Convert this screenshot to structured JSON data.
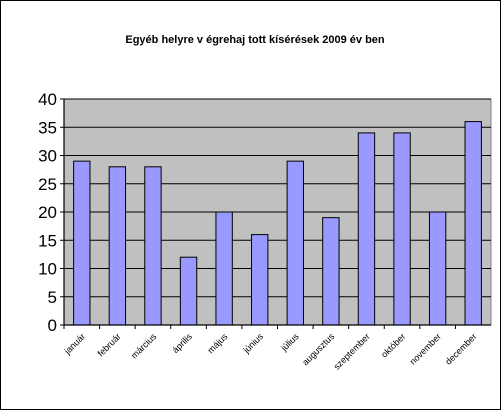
{
  "chart_data": {
    "type": "bar",
    "title": "Egyéb helyre v égrehaj tott kísérések 2009 év ben",
    "xlabel": "",
    "ylabel": "",
    "ylim": [
      0,
      40
    ],
    "yticks": [
      "0",
      "5",
      "10",
      "15",
      "20",
      "25",
      "30",
      "35",
      "40"
    ],
    "grid": true,
    "legend": "none",
    "categories": [
      "január",
      "február",
      "március",
      "április",
      "május",
      "június",
      "július",
      "augusztus",
      "szeptember",
      "október",
      "november",
      "december"
    ],
    "values": [
      29,
      28,
      28,
      12,
      20,
      16,
      29,
      19,
      34,
      34,
      20,
      36
    ],
    "colors": {
      "plot_background": "#c0c0c0",
      "bar_fill": "#9999ff",
      "bar_stroke": "#000000",
      "gridline": "#000000"
    }
  }
}
